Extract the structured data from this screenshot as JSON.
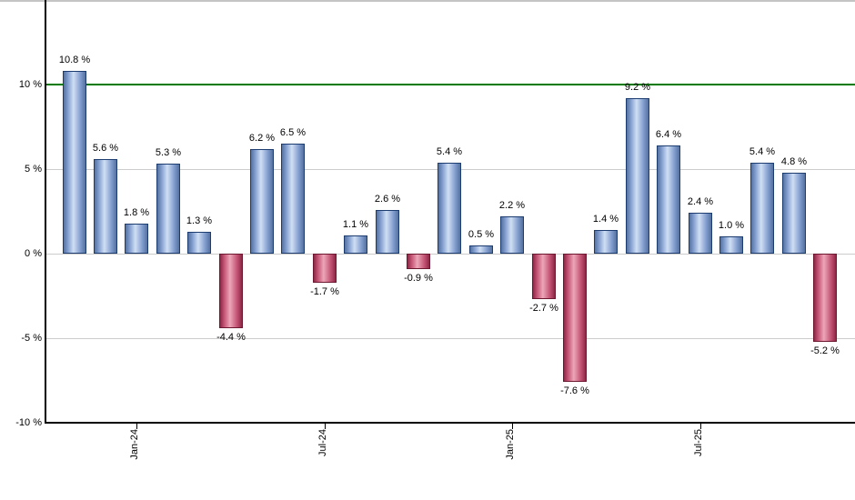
{
  "chart_data": {
    "type": "bar",
    "description": "monthly-percent-returns-bar-chart",
    "values": [
      10.8,
      5.6,
      1.8,
      5.3,
      1.3,
      -4.4,
      6.2,
      6.5,
      -1.7,
      1.1,
      2.6,
      -0.9,
      5.4,
      0.5,
      2.2,
      -2.7,
      -7.6,
      1.4,
      9.2,
      6.4,
      2.4,
      1.0,
      5.4,
      4.8,
      -5.2
    ],
    "bar_labels": [
      "10.8 %",
      "5.6 %",
      "1.8 %",
      "5.3 %",
      "1.3 %",
      "-4.4 %",
      "6.2 %",
      "6.5 %",
      "-1.7 %",
      "1.1 %",
      "2.6 %",
      "-0.9 %",
      "5.4 %",
      "0.5 %",
      "2.2 %",
      "-2.7 %",
      "-7.6 %",
      "1.4 %",
      "9.2 %",
      "6.4 %",
      "2.4 %",
      "1.0 %",
      "5.4 %",
      "4.8 %",
      "-5.2 %"
    ],
    "x_ticks": [
      {
        "label": "Jan-24",
        "index": 2
      },
      {
        "label": "Jul-24",
        "index": 8
      },
      {
        "label": "Jan-25",
        "index": 14
      },
      {
        "label": "Jul-25",
        "index": 20
      }
    ],
    "y_ticks": [
      {
        "label": "10 %",
        "value": 10
      },
      {
        "label": "5 %",
        "value": 5
      },
      {
        "label": "0 %",
        "value": 0
      },
      {
        "label": "-5 %",
        "value": -5
      },
      {
        "label": "-10 %",
        "value": -10
      }
    ],
    "ylim": [
      -10,
      15
    ],
    "grid": "horizontal",
    "legend": "none",
    "threshold_line": {
      "value": 10,
      "color": "#007a00"
    },
    "colors": {
      "positive_gradient": [
        "#54719f",
        "#7f9bcd",
        "#cfdff4",
        "#7f9bcd",
        "#54719f"
      ],
      "positive_border": "#1d3d70",
      "negative_gradient": [
        "#8e2746",
        "#c25273",
        "#eda6b8",
        "#c25273",
        "#8e2746"
      ],
      "negative_border": "#6b1830",
      "gridline": "#cccccc",
      "axis": "#000000",
      "top_border": "#c4c4c4",
      "label_text": "#000000",
      "background": "#ffffff"
    }
  }
}
